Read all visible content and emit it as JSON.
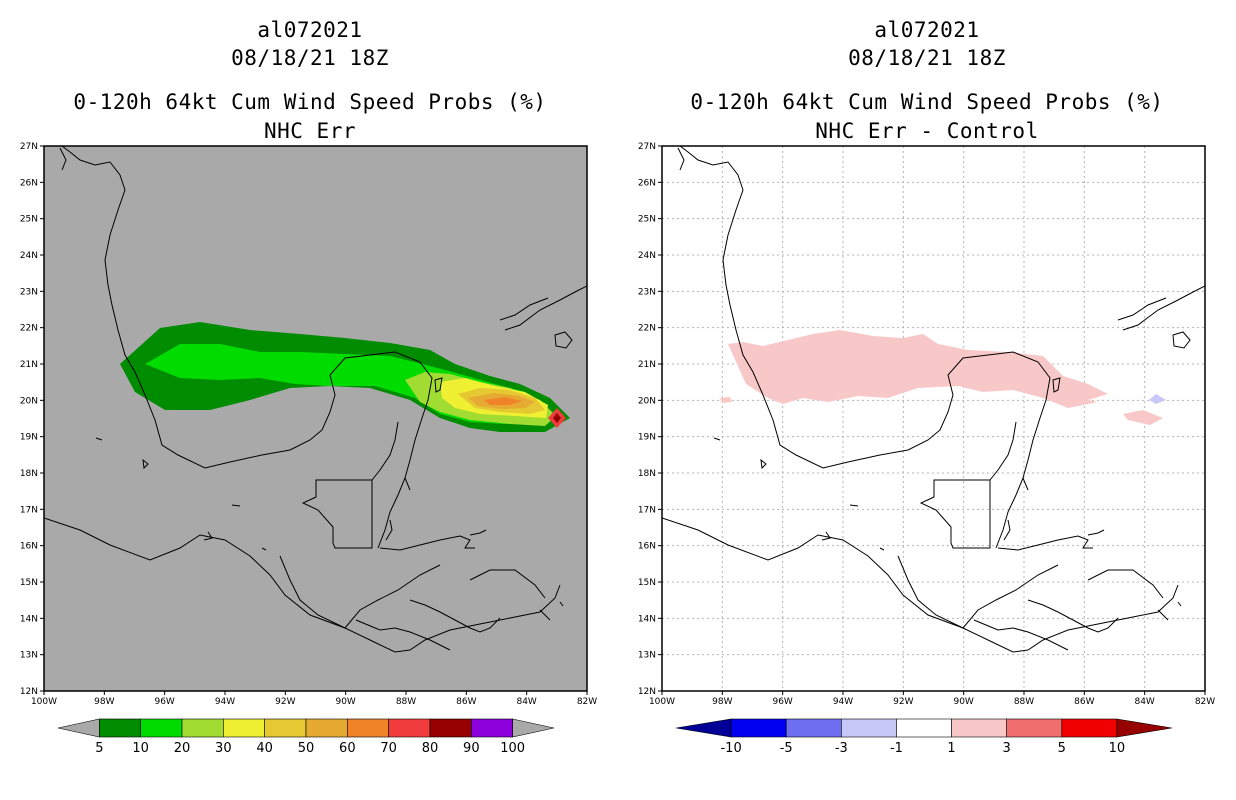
{
  "panels": [
    {
      "storm_id": "al072021",
      "datetime": "08/18/21 18Z",
      "product": "0-120h 64kt Cum Wind Speed Probs (%)",
      "subtitle": "NHC Err",
      "background": "#a9a9a9",
      "colorbar": {
        "colors": [
          "#a9a9a9",
          "#008c00",
          "#00dc00",
          "#a0dc32",
          "#f0f032",
          "#e6c832",
          "#e6aa32",
          "#f08228",
          "#f03c3c",
          "#960000",
          "#8c00dc",
          "#a9a9a9"
        ],
        "labels": [
          "5",
          "10",
          "20",
          "30",
          "40",
          "50",
          "60",
          "70",
          "80",
          "90",
          "100"
        ]
      }
    },
    {
      "storm_id": "al072021",
      "datetime": "08/18/21 18Z",
      "product": "0-120h 64kt Cum Wind Speed Probs (%)",
      "subtitle": "NHC Err - Control",
      "background": "#ffffff",
      "colorbar": {
        "colors": [
          "#000096",
          "#0000f0",
          "#6e6ef0",
          "#c8c8f8",
          "#ffffff",
          "#f8c8c8",
          "#f06e6e",
          "#f00000",
          "#960000"
        ],
        "labels": [
          "-10",
          "-5",
          "-3",
          "-1",
          "1",
          "3",
          "5",
          "10"
        ]
      }
    }
  ],
  "axes": {
    "lon_labels": [
      "100W",
      "98W",
      "96W",
      "94W",
      "92W",
      "90W",
      "88W",
      "86W",
      "84W",
      "82W"
    ],
    "lat_labels": [
      "27N",
      "26N",
      "25N",
      "24N",
      "23N",
      "22N",
      "21N",
      "20N",
      "19N",
      "18N",
      "17N",
      "16N",
      "15N",
      "14N",
      "13N",
      "12N"
    ]
  }
}
